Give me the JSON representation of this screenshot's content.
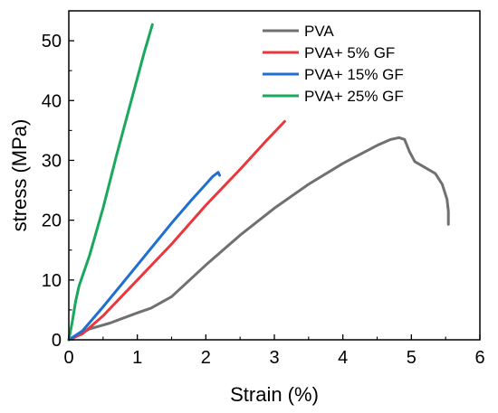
{
  "chart_data": {
    "type": "line",
    "title": "",
    "xlabel": "Strain (%)",
    "ylabel": "stress (MPa)",
    "xlim": [
      0,
      6
    ],
    "ylim": [
      0,
      55
    ],
    "x_ticks": [
      0,
      1,
      2,
      3,
      4,
      5,
      6
    ],
    "y_ticks": [
      0,
      10,
      20,
      30,
      40,
      50
    ],
    "x_tick_labels": [
      "0",
      "1",
      "2",
      "3",
      "4",
      "5",
      "6"
    ],
    "y_tick_labels": [
      "0",
      "10",
      "20",
      "30",
      "40",
      "50"
    ],
    "grid": false,
    "legend_position": "top-right",
    "series": [
      {
        "name": "PVA",
        "color": "#707070",
        "points": [
          [
            0,
            0
          ],
          [
            0.3,
            1.8
          ],
          [
            0.6,
            2.8
          ],
          [
            1.0,
            4.5
          ],
          [
            1.2,
            5.3
          ],
          [
            1.5,
            7.2
          ],
          [
            2.0,
            12.5
          ],
          [
            2.5,
            17.5
          ],
          [
            3.0,
            22.0
          ],
          [
            3.5,
            26.0
          ],
          [
            4.0,
            29.5
          ],
          [
            4.5,
            32.5
          ],
          [
            4.7,
            33.5
          ],
          [
            4.82,
            33.8
          ],
          [
            4.9,
            33.5
          ],
          [
            4.97,
            31.5
          ],
          [
            5.05,
            29.8
          ],
          [
            5.2,
            28.8
          ],
          [
            5.35,
            27.8
          ],
          [
            5.45,
            26.0
          ],
          [
            5.52,
            23.5
          ],
          [
            5.54,
            21.5
          ],
          [
            5.54,
            19.3
          ]
        ]
      },
      {
        "name": "PVA+ 5% GF",
        "color": "#e8383d",
        "points": [
          [
            0,
            0
          ],
          [
            0.2,
            1.0
          ],
          [
            0.5,
            4.0
          ],
          [
            1.0,
            10.0
          ],
          [
            1.5,
            16.0
          ],
          [
            2.0,
            22.5
          ],
          [
            2.5,
            28.5
          ],
          [
            2.9,
            33.5
          ],
          [
            3.15,
            36.5
          ]
        ]
      },
      {
        "name": "PVA+ 15% GF",
        "color": "#1f6fd1",
        "points": [
          [
            0,
            0
          ],
          [
            0.2,
            1.5
          ],
          [
            0.5,
            5.5
          ],
          [
            1.0,
            12.5
          ],
          [
            1.5,
            19.5
          ],
          [
            1.8,
            23.5
          ],
          [
            2.0,
            26.0
          ],
          [
            2.1,
            27.3
          ],
          [
            2.18,
            28.0
          ],
          [
            2.2,
            27.5
          ]
        ]
      },
      {
        "name": "PVA+ 25% GF",
        "color": "#1aa85c",
        "points": [
          [
            0,
            0
          ],
          [
            0.05,
            3.0
          ],
          [
            0.1,
            6.5
          ],
          [
            0.15,
            9.0
          ],
          [
            0.3,
            14.0
          ],
          [
            0.5,
            22.0
          ],
          [
            0.7,
            31.0
          ],
          [
            0.9,
            39.5
          ],
          [
            1.1,
            48.0
          ],
          [
            1.22,
            52.7
          ]
        ]
      }
    ]
  }
}
